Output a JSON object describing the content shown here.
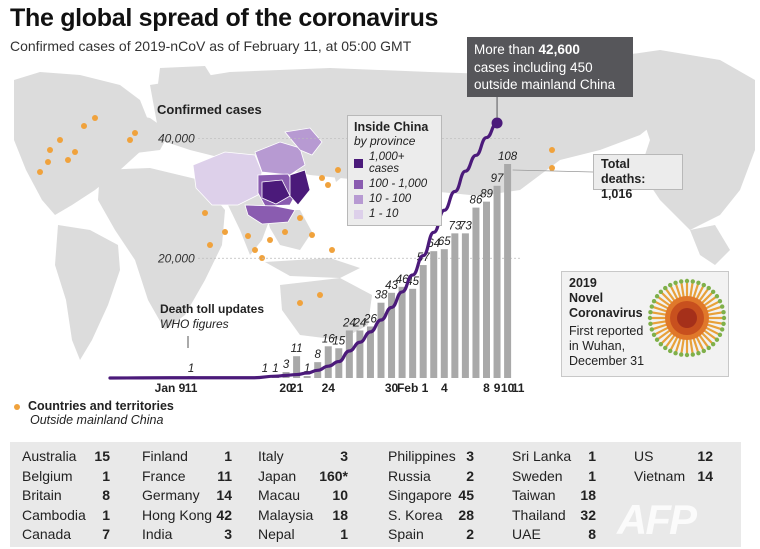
{
  "title": "The global spread of the coronavirus",
  "subtitle": "Confirmed cases of 2019-nCoV as of February 11, at 05:00 GMT",
  "callout": {
    "prefix": "More than ",
    "value": "42,600",
    "line2": "cases including 450",
    "line3": "outside mainland China"
  },
  "confirmed_label": "Confirmed cases",
  "legend_china": {
    "title": "Inside China",
    "subtitle": "by province",
    "items": [
      {
        "label": "1,000+ cases",
        "color": "#4b1a7a"
      },
      {
        "label": "100 - 1,000",
        "color": "#8a5cb0"
      },
      {
        "label": "10 - 100",
        "color": "#b79ad2"
      },
      {
        "label": "1 - 10",
        "color": "#ddd0ea"
      }
    ]
  },
  "total_deaths": {
    "label": "Total deaths:",
    "value": "1,016"
  },
  "virus_box": {
    "line1": "2019",
    "line2": "Novel",
    "line3": "Coronavirus",
    "desc": [
      "First reported",
      "in Wuhan,",
      "December 31"
    ]
  },
  "death_note": {
    "title": "Death toll updates",
    "subtitle": "WHO figures"
  },
  "dot_legend": {
    "line1": "Countries and territories",
    "line2": "Outside mainland China"
  },
  "colors": {
    "line": "#4b1a7a",
    "bar": "#a9a9a9",
    "map": "#dcdcdc",
    "dot": "#f0a23c",
    "callout_bg": "#56565a"
  },
  "chart_data": {
    "type": "bar",
    "x_labels": [
      {
        "i": 0,
        "text": "Jan 9"
      },
      {
        "i": 2,
        "text": "11"
      },
      {
        "i": 11,
        "text": "20"
      },
      {
        "i": 12,
        "text": "21"
      },
      {
        "i": 15,
        "text": "24"
      },
      {
        "i": 21,
        "text": "30"
      },
      {
        "i": 23,
        "text": "Feb 1"
      },
      {
        "i": 26,
        "text": "4"
      },
      {
        "i": 30,
        "text": "8"
      },
      {
        "i": 31,
        "text": "9"
      },
      {
        "i": 32,
        "text": "10"
      },
      {
        "i": 33,
        "text": "11"
      }
    ],
    "deaths": [
      {
        "i": 2,
        "value": 1
      },
      {
        "i": 9,
        "value": 1
      },
      {
        "i": 10,
        "value": 1
      },
      {
        "i": 11,
        "value": 3
      },
      {
        "i": 12,
        "value": 11
      },
      {
        "i": 13,
        "value": 1
      },
      {
        "i": 14,
        "value": 8
      },
      {
        "i": 15,
        "value": 16
      },
      {
        "i": 16,
        "value": 15
      },
      {
        "i": 17,
        "value": 24
      },
      {
        "i": 18,
        "value": 24
      },
      {
        "i": 19,
        "value": 26
      },
      {
        "i": 20,
        "value": 38
      },
      {
        "i": 21,
        "value": 43
      },
      {
        "i": 22,
        "value": 46
      },
      {
        "i": 23,
        "value": 45
      },
      {
        "i": 24,
        "value": 57
      },
      {
        "i": 25,
        "value": 64
      },
      {
        "i": 26,
        "value": 65
      },
      {
        "i": 27,
        "value": 73
      },
      {
        "i": 28,
        "value": 73
      },
      {
        "i": 29,
        "value": 86
      },
      {
        "i": 30,
        "value": 89
      },
      {
        "i": 31,
        "value": 97
      },
      {
        "i": 32,
        "value": 108
      }
    ],
    "cases_ticks": [
      "20,000",
      "40,000"
    ],
    "cases": [
      {
        "i": 0,
        "value": 41
      },
      {
        "i": 4,
        "value": 41
      },
      {
        "i": 8,
        "value": 45
      },
      {
        "i": 10,
        "value": 300
      },
      {
        "i": 11,
        "value": 440
      },
      {
        "i": 12,
        "value": 571
      },
      {
        "i": 13,
        "value": 830
      },
      {
        "i": 14,
        "value": 1287
      },
      {
        "i": 15,
        "value": 1975
      },
      {
        "i": 16,
        "value": 2744
      },
      {
        "i": 17,
        "value": 4515
      },
      {
        "i": 18,
        "value": 5974
      },
      {
        "i": 19,
        "value": 7711
      },
      {
        "i": 20,
        "value": 9692
      },
      {
        "i": 21,
        "value": 11791
      },
      {
        "i": 22,
        "value": 14380
      },
      {
        "i": 23,
        "value": 17205
      },
      {
        "i": 24,
        "value": 20438
      },
      {
        "i": 25,
        "value": 24324
      },
      {
        "i": 26,
        "value": 28018
      },
      {
        "i": 27,
        "value": 31161
      },
      {
        "i": 28,
        "value": 34546
      },
      {
        "i": 29,
        "value": 37198
      },
      {
        "i": 30,
        "value": 40171
      },
      {
        "i": 31,
        "value": 42600
      }
    ]
  },
  "countries": [
    [
      {
        "name": "Australia",
        "value": "15"
      },
      {
        "name": "Belgium",
        "value": "1"
      },
      {
        "name": "Britain",
        "value": "8"
      },
      {
        "name": "Cambodia",
        "value": "1"
      },
      {
        "name": "Canada",
        "value": "7"
      }
    ],
    [
      {
        "name": "Finland",
        "value": "1"
      },
      {
        "name": "France",
        "value": "11"
      },
      {
        "name": "Germany",
        "value": "14"
      },
      {
        "name": "Hong Kong",
        "value": "42"
      },
      {
        "name": "India",
        "value": "3"
      }
    ],
    [
      {
        "name": "Italy",
        "value": "3"
      },
      {
        "name": "Japan",
        "value": "160*"
      },
      {
        "name": "Macau",
        "value": "10"
      },
      {
        "name": "Malaysia",
        "value": "18"
      },
      {
        "name": "Nepal",
        "value": "1"
      }
    ],
    [
      {
        "name": "Philippines",
        "value": "3"
      },
      {
        "name": "Russia",
        "value": "2"
      },
      {
        "name": "Singapore",
        "value": "45"
      },
      {
        "name": "S. Korea",
        "value": "28"
      },
      {
        "name": "Spain",
        "value": "2"
      }
    ],
    [
      {
        "name": "Sri Lanka",
        "value": "1"
      },
      {
        "name": "Sweden",
        "value": "1"
      },
      {
        "name": "Taiwan",
        "value": "18"
      },
      {
        "name": "Thailand",
        "value": "32"
      },
      {
        "name": "UAE",
        "value": "8"
      }
    ],
    [
      {
        "name": "US",
        "value": "12"
      },
      {
        "name": "Vietnam",
        "value": "14"
      }
    ]
  ],
  "watermark": "AFP"
}
